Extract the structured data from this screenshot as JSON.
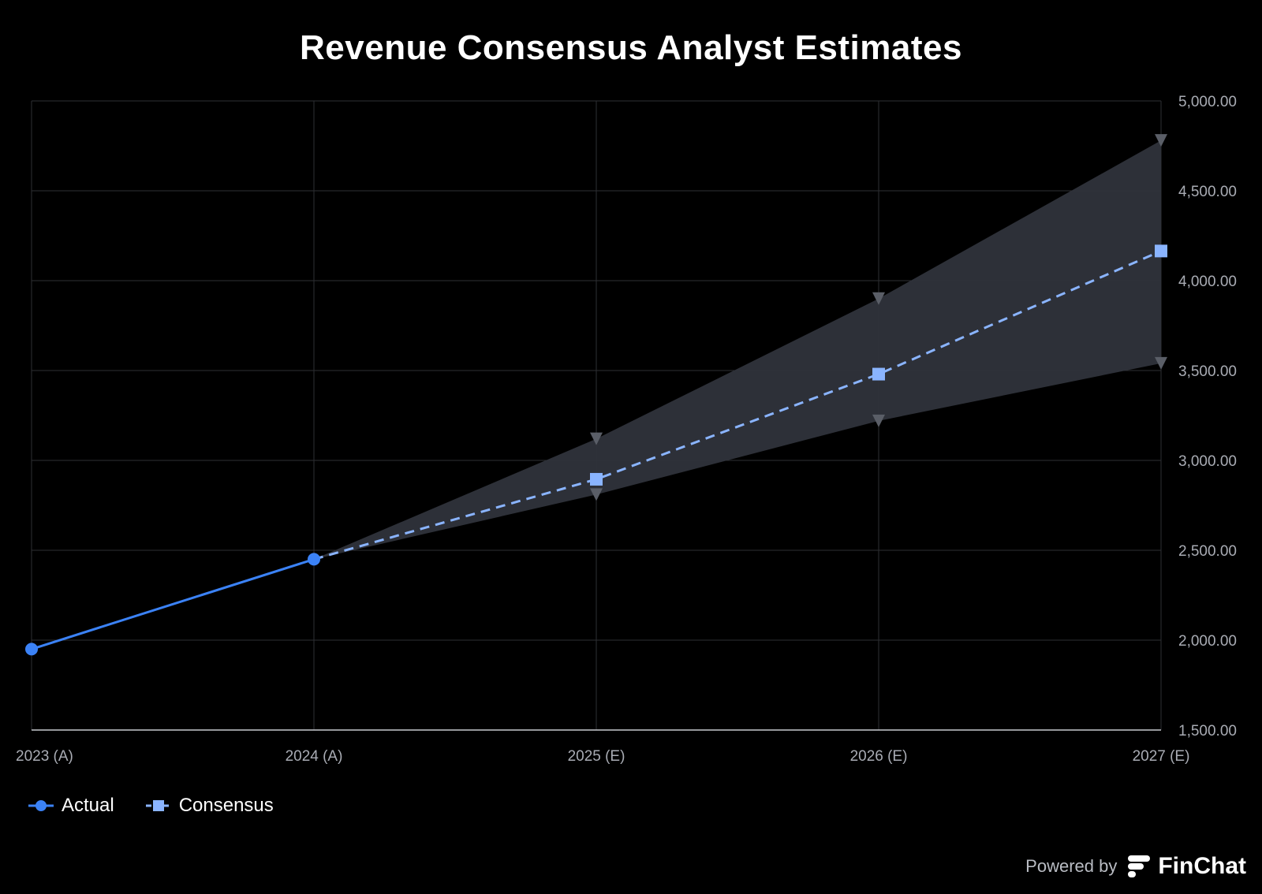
{
  "chart_data": {
    "type": "line",
    "title": "Revenue Consensus Analyst Estimates",
    "categories": [
      "2023 (A)",
      "2024 (A)",
      "2025 (E)",
      "2026 (E)",
      "2027 (E)"
    ],
    "y_axis": {
      "position": "right",
      "min": 1500,
      "max": 5000,
      "ticks": [
        "1,500.00",
        "2,000.00",
        "2,500.00",
        "3,000.00",
        "3,500.00",
        "4,000.00",
        "4,500.00",
        "5,000.00"
      ],
      "tick_values": [
        1500,
        2000,
        2500,
        3000,
        3500,
        4000,
        4500,
        5000
      ]
    },
    "grid": true,
    "legend_placement": "bottom-left",
    "series": [
      {
        "name": "Actual",
        "style": "solid",
        "marker": "circle",
        "color": "#3b82f6",
        "values": [
          1950,
          2450,
          null,
          null,
          null
        ]
      },
      {
        "name": "Consensus",
        "style": "dashed",
        "marker": "square",
        "color": "#8ab4ff",
        "values": [
          null,
          2450,
          2895,
          3480,
          4165
        ]
      }
    ],
    "estimate_range": {
      "color": "#2f333b",
      "high": [
        null,
        2450,
        3120,
        3900,
        4780
      ],
      "low": [
        null,
        2450,
        2810,
        3220,
        3540
      ]
    }
  },
  "footer": {
    "powered_by": "Powered by",
    "brand": "FinChat"
  }
}
